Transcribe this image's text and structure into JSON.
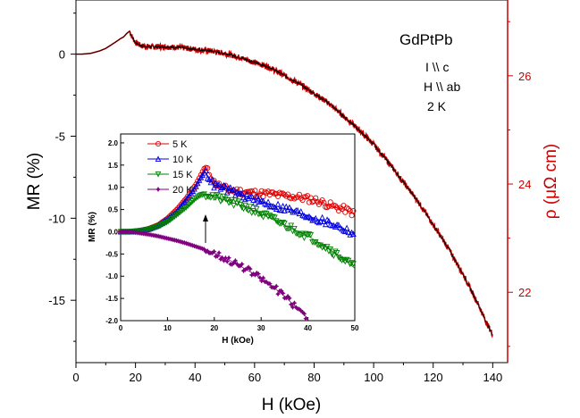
{
  "chart_data": [
    {
      "type": "line",
      "xlabel": "H (kOe)",
      "ylabel": "MR (%)",
      "y2label": "ρ (μΩ cm)",
      "xlim": [
        0,
        145
      ],
      "ylim": [
        -18.8,
        3.3
      ],
      "y2lim": [
        20.7,
        27.4
      ],
      "x_ticks": [
        "0",
        "20",
        "40",
        "60",
        "80",
        "100",
        "120",
        "140"
      ],
      "y_ticks": [
        "0",
        "-5",
        "-10",
        "-15"
      ],
      "y2_ticks": [
        "22",
        "24",
        "26"
      ],
      "annotations": [
        "GdPtPb",
        "I \\\\ c",
        "H \\\\ ab",
        "2 K"
      ],
      "colors": {
        "main_curve": "#cc0000",
        "main_curve_overlay": "#000000",
        "right_axis": "#cc0000"
      },
      "series": [
        {
          "x": [
            0,
            2,
            5,
            8,
            10,
            13,
            15,
            16,
            17,
            18,
            19,
            20,
            22,
            25,
            30,
            35,
            40,
            45,
            50,
            55,
            60,
            65,
            70,
            75,
            80,
            85,
            90,
            95,
            100,
            105,
            110,
            115,
            120,
            125,
            130,
            135,
            138,
            140
          ],
          "y": [
            0,
            0,
            0.05,
            0.2,
            0.35,
            0.7,
            0.95,
            1.05,
            1.25,
            1.4,
            1.0,
            0.7,
            0.5,
            0.45,
            0.45,
            0.4,
            0.3,
            0.2,
            0.05,
            -0.2,
            -0.5,
            -0.8,
            -1.3,
            -1.8,
            -2.4,
            -3.0,
            -3.8,
            -4.6,
            -5.5,
            -6.6,
            -7.8,
            -9.0,
            -10.4,
            -11.8,
            -13.4,
            -15.2,
            -16.4,
            -17.1
          ]
        }
      ]
    },
    {
      "type": "line",
      "xlabel": "H (kOe)",
      "ylabel": "MR (%)",
      "xlim": [
        0,
        50
      ],
      "ylim": [
        -2.0,
        2.2
      ],
      "x_ticks": [
        "0",
        "10",
        "20",
        "30",
        "40",
        "50"
      ],
      "y_ticks": [
        "2.0",
        "1.5",
        "1.0",
        "0.5",
        "0.0",
        "-0.5",
        "-1.0",
        "-1.5",
        "-2.0"
      ],
      "legend": "top-left",
      "series": [
        {
          "name": "5 K",
          "color": "#e00000",
          "marker": "circle",
          "x": [
            0,
            2,
            4,
            6,
            8,
            10,
            12,
            14,
            16,
            17,
            18,
            19,
            20,
            22,
            24,
            26,
            28,
            30,
            32,
            34,
            36,
            38,
            40,
            42,
            44,
            46,
            48,
            50
          ],
          "y": [
            0,
            0,
            0.02,
            0.07,
            0.15,
            0.3,
            0.5,
            0.75,
            1.05,
            1.25,
            1.45,
            1.3,
            1.1,
            0.98,
            0.92,
            0.9,
            0.88,
            0.86,
            0.85,
            0.82,
            0.8,
            0.78,
            0.74,
            0.7,
            0.62,
            0.55,
            0.5,
            0.4
          ]
        },
        {
          "name": "10 K",
          "color": "#0000e0",
          "marker": "triangle-up",
          "x": [
            0,
            2,
            4,
            6,
            8,
            10,
            12,
            14,
            16,
            17,
            18,
            19,
            20,
            22,
            24,
            26,
            28,
            30,
            32,
            34,
            36,
            38,
            40,
            42,
            44,
            46,
            48,
            50
          ],
          "y": [
            0,
            0,
            0.02,
            0.06,
            0.14,
            0.28,
            0.46,
            0.72,
            1.0,
            1.2,
            1.35,
            1.2,
            1.05,
            0.98,
            0.9,
            0.82,
            0.74,
            0.68,
            0.62,
            0.55,
            0.5,
            0.42,
            0.36,
            0.28,
            0.22,
            0.15,
            0.05,
            -0.05
          ]
        },
        {
          "name": "15 K",
          "color": "#008000",
          "marker": "triangle-down",
          "x": [
            0,
            2,
            4,
            6,
            8,
            10,
            12,
            14,
            16,
            17,
            18,
            19,
            20,
            22,
            24,
            26,
            28,
            30,
            32,
            34,
            36,
            38,
            40,
            42,
            44,
            46,
            48,
            50
          ],
          "y": [
            0,
            0,
            0.02,
            0.05,
            0.12,
            0.22,
            0.38,
            0.55,
            0.75,
            0.82,
            0.85,
            0.82,
            0.78,
            0.72,
            0.65,
            0.58,
            0.5,
            0.4,
            0.3,
            0.2,
            0.1,
            0.0,
            -0.1,
            -0.22,
            -0.35,
            -0.5,
            -0.65,
            -0.82
          ]
        },
        {
          "name": "20 K",
          "color": "#800080",
          "marker": "star",
          "x": [
            0,
            2,
            4,
            6,
            8,
            10,
            12,
            14,
            16,
            18,
            20,
            22,
            24,
            26,
            28,
            30,
            32,
            34,
            36,
            38,
            40
          ],
          "y": [
            0,
            0,
            -0.03,
            -0.06,
            -0.1,
            -0.15,
            -0.2,
            -0.26,
            -0.33,
            -0.4,
            -0.48,
            -0.58,
            -0.68,
            -0.8,
            -0.92,
            -1.05,
            -1.2,
            -1.36,
            -1.55,
            -1.75,
            -1.95
          ]
        }
      ],
      "annotations": [
        "↑ at H ≈ 18 kOe"
      ]
    }
  ]
}
